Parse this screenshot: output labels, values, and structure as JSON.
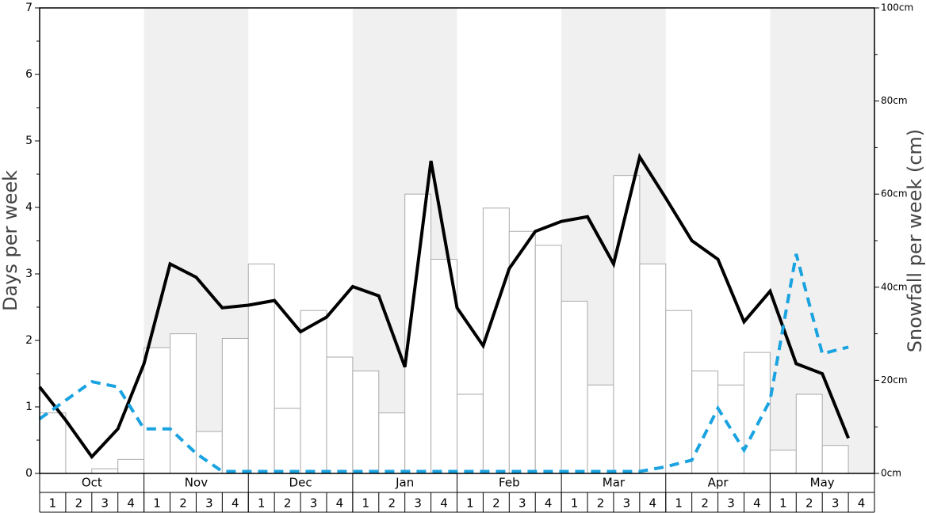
{
  "chart_data": {
    "type": "bar-line",
    "ylabel": "Days per week",
    "y2label": "Snowfall per week (cm)",
    "months": [
      "Oct",
      "Nov",
      "Dec",
      "Jan",
      "Feb",
      "Mar",
      "Apr",
      "May"
    ],
    "categories": [
      "1",
      "2",
      "3",
      "4",
      "1",
      "2",
      "3",
      "4",
      "1",
      "2",
      "3",
      "4",
      "1",
      "2",
      "3",
      "4",
      "1",
      "2",
      "3",
      "4",
      "1",
      "2",
      "3",
      "4",
      "1",
      "2",
      "3",
      "4",
      "1",
      "2",
      "3",
      "4"
    ],
    "ylim": [
      0,
      7
    ],
    "yticks": [
      0,
      1,
      2,
      3,
      4,
      5,
      6,
      7
    ],
    "y2lim": [
      0,
      100
    ],
    "y2ticks": [
      {
        "value": 0,
        "label": "0cm"
      },
      {
        "value": 20,
        "label": "20cm"
      },
      {
        "value": 40,
        "label": "40cm"
      },
      {
        "value": 60,
        "label": "60cm"
      },
      {
        "value": 80,
        "label": "80cm"
      },
      {
        "value": 100,
        "label": "100cm"
      }
    ],
    "bars": {
      "axis": "y2",
      "color": "#ffffff",
      "values": [
        13,
        0,
        1,
        3,
        27,
        30,
        9,
        29,
        45,
        14,
        35,
        25,
        22,
        13,
        60,
        46,
        17,
        57,
        52,
        49,
        37,
        19,
        64,
        45,
        35,
        22,
        19,
        26,
        5,
        17,
        6,
        0
      ]
    },
    "series": [
      {
        "color": "#000000",
        "values": [
          1.3,
          0.8,
          0.25,
          0.67,
          1.65,
          3.15,
          2.95,
          2.49,
          2.53,
          2.6,
          2.13,
          2.35,
          2.81,
          2.67,
          1.6,
          4.7,
          2.49,
          1.92,
          3.08,
          3.64,
          3.79,
          3.86,
          3.15,
          4.76,
          4.14,
          3.5,
          3.22,
          2.28,
          2.74,
          1.65,
          1.5,
          0.53
        ]
      },
      {
        "color": "#1aa3e0",
        "values": [
          0.82,
          1.1,
          1.38,
          1.3,
          0.67,
          0.67,
          0.3,
          0.03,
          0.03,
          0.03,
          0.03,
          0.03,
          0.03,
          0.03,
          0.03,
          0.03,
          0.03,
          0.03,
          0.03,
          0.03,
          0.03,
          0.03,
          0.03,
          0.03,
          0.1,
          0.2,
          0.98,
          0.35,
          1.1,
          3.3,
          1.8,
          1.9
        ]
      }
    ]
  }
}
